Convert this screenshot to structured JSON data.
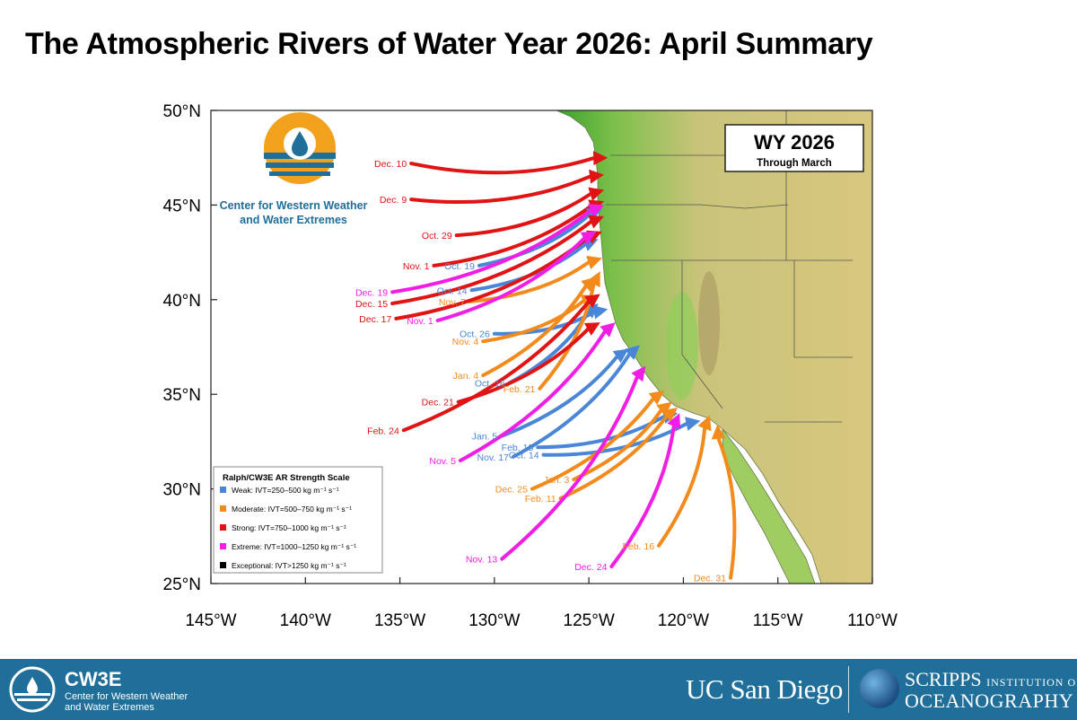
{
  "title": "The Atmospheric Rivers of Water Year 2026: April Summary",
  "map": {
    "lon_range": [
      -145,
      -110
    ],
    "lat_range": [
      25,
      50
    ],
    "lon_ticks": [
      "145°W",
      "140°W",
      "135°W",
      "130°W",
      "125°W",
      "120°W",
      "115°W",
      "110°W"
    ],
    "lat_ticks": [
      "50°N",
      "45°N",
      "40°N",
      "35°N",
      "30°N",
      "25°N"
    ],
    "badge_title": "WY 2026",
    "badge_sub": "Through March",
    "org_name_line1": "Center for Western Weather",
    "org_name_line2": "and Water Extremes"
  },
  "colors": {
    "weak": "#4a86d8",
    "moderate": "#f28a1c",
    "strong": "#e01414",
    "extreme": "#f21de4",
    "exceptional": "#000000",
    "ocean": "#ffffff",
    "land_low": "#3aa12e",
    "land_high": "#d8c77e",
    "footer": "#1f6f9a"
  },
  "legend": {
    "title": "Ralph/CW3E AR Strength Scale",
    "items": [
      {
        "label": "Weak: IVT=250–500 kg m⁻¹ s⁻¹",
        "category": "weak"
      },
      {
        "label": "Moderate: IVT=500–750 kg m⁻¹ s⁻¹",
        "category": "moderate"
      },
      {
        "label": "Strong: IVT=750–1000 kg m⁻¹ s⁻¹",
        "category": "strong"
      },
      {
        "label": "Extreme: IVT=1000–1250 kg m⁻¹ s⁻¹",
        "category": "extreme"
      },
      {
        "label": "Exceptional: IVT>1250 kg m⁻¹ s⁻¹",
        "category": "exceptional"
      }
    ]
  },
  "events": [
    {
      "label": "Dec. 10",
      "category": "strong",
      "start": [
        -134.4,
        47.2
      ],
      "end": [
        -124.0,
        47.5
      ]
    },
    {
      "label": "Dec. 9",
      "category": "strong",
      "start": [
        -134.4,
        45.3
      ],
      "end": [
        -124.2,
        46.6
      ]
    },
    {
      "label": "Oct. 29",
      "category": "strong",
      "start": [
        -132.0,
        43.4
      ],
      "end": [
        -124.2,
        45.8
      ]
    },
    {
      "label": "Nov. 1",
      "category": "strong",
      "start": [
        -133.2,
        41.8
      ],
      "end": [
        -124.2,
        45.2
      ]
    },
    {
      "label": "Oct. 19",
      "category": "weak",
      "start": [
        -130.8,
        41.8
      ],
      "end": [
        -124.3,
        44.8
      ]
    },
    {
      "label": "Dec. 19",
      "category": "extreme",
      "start": [
        -135.4,
        40.4
      ],
      "end": [
        -124.2,
        45.0
      ]
    },
    {
      "label": "Oct. 14",
      "category": "weak",
      "start": [
        -131.2,
        40.5
      ],
      "end": [
        -124.5,
        43.2
      ]
    },
    {
      "label": "Dec. 15",
      "category": "strong",
      "start": [
        -135.4,
        39.8
      ],
      "end": [
        -124.2,
        44.4
      ]
    },
    {
      "label": "Nov. 7",
      "category": "moderate",
      "start": [
        -131.3,
        39.9
      ],
      "end": [
        -124.3,
        42.2
      ]
    },
    {
      "label": "Dec. 17",
      "category": "strong",
      "start": [
        -135.2,
        39.0
      ],
      "end": [
        -124.3,
        43.6
      ]
    },
    {
      "label": "Nov. 1",
      "category": "extreme",
      "start": [
        -133.0,
        38.9
      ],
      "end": [
        -124.6,
        43.6
      ]
    },
    {
      "label": "Oct. 26",
      "category": "weak",
      "start": [
        -130.0,
        38.2
      ],
      "end": [
        -124.0,
        39.5
      ]
    },
    {
      "label": "Nov. 4",
      "category": "moderate",
      "start": [
        -130.6,
        37.8
      ],
      "end": [
        -124.6,
        40.2
      ]
    },
    {
      "label": "Jan. 4",
      "category": "moderate",
      "start": [
        -130.6,
        36.0
      ],
      "end": [
        -124.6,
        41.2
      ]
    },
    {
      "label": "Oct. 16",
      "category": "weak",
      "start": [
        -129.2,
        35.6
      ],
      "end": [
        -124.5,
        39.8
      ]
    },
    {
      "label": "Feb. 21",
      "category": "moderate",
      "start": [
        -127.6,
        35.3
      ],
      "end": [
        -124.4,
        41.5
      ]
    },
    {
      "label": "Dec. 21",
      "category": "strong",
      "start": [
        -131.9,
        34.6
      ],
      "end": [
        -124.4,
        38.8
      ]
    },
    {
      "label": "Feb. 24",
      "category": "strong",
      "start": [
        -134.8,
        33.1
      ],
      "end": [
        -124.4,
        40.3
      ]
    },
    {
      "label": "Jan. 5",
      "category": "weak",
      "start": [
        -129.6,
        32.8
      ],
      "end": [
        -122.9,
        37.4
      ]
    },
    {
      "label": "Feb. 18",
      "category": "weak",
      "start": [
        -127.7,
        32.2
      ],
      "end": [
        -120.3,
        34.0
      ]
    },
    {
      "label": "Nov. 17",
      "category": "weak",
      "start": [
        -129.0,
        31.7
      ],
      "end": [
        -122.3,
        37.6
      ]
    },
    {
      "label": "Oct. 14",
      "category": "weak",
      "start": [
        -127.4,
        31.8
      ],
      "end": [
        -119.1,
        33.6
      ]
    },
    {
      "label": "Nov. 5",
      "category": "extreme",
      "start": [
        -131.8,
        31.5
      ],
      "end": [
        -123.6,
        38.8
      ]
    },
    {
      "label": "Jan. 3",
      "category": "moderate",
      "start": [
        -125.8,
        30.5
      ],
      "end": [
        -120.6,
        34.6
      ]
    },
    {
      "label": "Dec. 25",
      "category": "moderate",
      "start": [
        -128.0,
        30.0
      ],
      "end": [
        -121.0,
        35.2
      ]
    },
    {
      "label": "Feb. 11",
      "category": "moderate",
      "start": [
        -126.5,
        29.5
      ],
      "end": [
        -120.3,
        34.3
      ]
    },
    {
      "label": "Feb. 16",
      "category": "moderate",
      "start": [
        -121.3,
        27.0
      ],
      "end": [
        -118.6,
        33.9
      ]
    },
    {
      "label": "Nov. 13",
      "category": "extreme",
      "start": [
        -129.6,
        26.3
      ],
      "end": [
        -122.0,
        36.5
      ]
    },
    {
      "label": "Dec. 24",
      "category": "extreme",
      "start": [
        -123.8,
        25.9
      ],
      "end": [
        -120.2,
        34.0
      ]
    },
    {
      "label": "Dec. 31",
      "category": "moderate",
      "start": [
        -117.5,
        25.3
      ],
      "end": [
        -118.2,
        33.4
      ]
    }
  ],
  "footer": {
    "short_name": "CW3E",
    "long_name_line1": "Center for Western Weather",
    "long_name_line2": "and Water Extremes",
    "ucsd": "UC San Diego",
    "scripps_big": "SCRIPPS",
    "scripps_small": "INSTITUTION OF",
    "scripps_bottom": "OCEANOGRAPHY"
  }
}
